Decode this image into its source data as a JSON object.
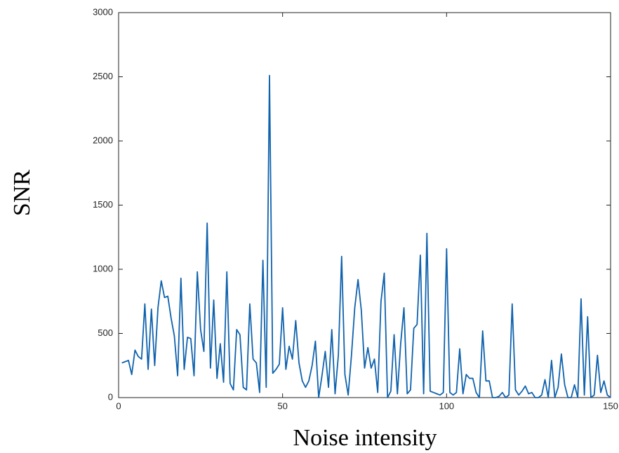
{
  "chart_data": {
    "type": "line",
    "xlabel": "Noise intensity",
    "ylabel": "SNR",
    "x": [
      1,
      2,
      3,
      4,
      5,
      6,
      7,
      8,
      9,
      10,
      11,
      12,
      13,
      14,
      15,
      16,
      17,
      18,
      19,
      20,
      21,
      22,
      23,
      24,
      25,
      26,
      27,
      28,
      29,
      30,
      31,
      32,
      33,
      34,
      35,
      36,
      37,
      38,
      39,
      40,
      41,
      42,
      43,
      44,
      45,
      46,
      47,
      48,
      49,
      50,
      51,
      52,
      53,
      54,
      55,
      56,
      57,
      58,
      59,
      60,
      61,
      62,
      63,
      64,
      65,
      66,
      67,
      68,
      69,
      70,
      71,
      72,
      73,
      74,
      75,
      76,
      77,
      78,
      79,
      80,
      81,
      82,
      83,
      84,
      85,
      86,
      87,
      88,
      89,
      90,
      91,
      92,
      93,
      94,
      95,
      96,
      97,
      98,
      99,
      100,
      101,
      102,
      103,
      104,
      105,
      106,
      107,
      108,
      109,
      110,
      111,
      112,
      113,
      114,
      115,
      116,
      117,
      118,
      119,
      120,
      121,
      122,
      123,
      124,
      125,
      126,
      127,
      128,
      129,
      130,
      131,
      132,
      133,
      134,
      135,
      136,
      137,
      138,
      139,
      140,
      141,
      142,
      143,
      144,
      145,
      146,
      147,
      148,
      149,
      150
    ],
    "series": [
      {
        "color": "#0f62ad",
        "values": [
          270,
          280,
          290,
          180,
          370,
          320,
          300,
          730,
          220,
          690,
          250,
          700,
          910,
          780,
          790,
          620,
          480,
          170,
          930,
          220,
          470,
          460,
          170,
          980,
          530,
          360,
          1360,
          230,
          760,
          150,
          420,
          120,
          980,
          110,
          60,
          530,
          490,
          80,
          60,
          730,
          300,
          270,
          40,
          1070,
          80,
          2510,
          190,
          220,
          260,
          700,
          220,
          400,
          300,
          600,
          270,
          130,
          80,
          130,
          250,
          440,
          0,
          170,
          360,
          80,
          530,
          30,
          330,
          1100,
          180,
          20,
          330,
          700,
          920,
          680,
          230,
          390,
          230,
          300,
          40,
          750,
          970,
          0,
          50,
          490,
          30,
          420,
          700,
          30,
          60,
          540,
          570,
          1110,
          30,
          1280,
          50,
          40,
          30,
          20,
          40,
          1160,
          40,
          20,
          40,
          380,
          30,
          180,
          150,
          150,
          40,
          0,
          520,
          130,
          130,
          0,
          0,
          10,
          40,
          0,
          20,
          730,
          60,
          20,
          50,
          90,
          30,
          40,
          0,
          0,
          20,
          140,
          0,
          290,
          0,
          80,
          340,
          100,
          0,
          0,
          100,
          0,
          770,
          20,
          630,
          0,
          20,
          330,
          40,
          130,
          20,
          0
        ]
      }
    ],
    "xlim": [
      0,
      150
    ],
    "xticks": [
      0,
      50,
      100,
      150
    ],
    "ylim": [
      0,
      3000
    ],
    "yticks": [
      0,
      500,
      1000,
      1500,
      2000,
      2500,
      3000
    ]
  }
}
